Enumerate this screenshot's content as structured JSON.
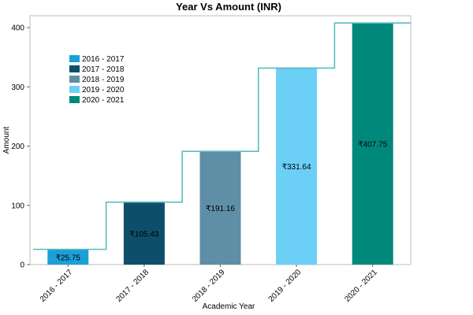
{
  "chart_data": {
    "type": "bar",
    "title": "Year Vs Amount (INR)",
    "xlabel": "Academic Year",
    "ylabel": "Amount",
    "ylim": [
      0,
      420
    ],
    "yticks": [
      0,
      100,
      200,
      300,
      400
    ],
    "categories": [
      "2016 - 2017",
      "2017 - 2018",
      "2018 - 2019",
      "2019 - 2020",
      "2020 - 2021"
    ],
    "values": [
      25.75,
      105.43,
      191.16,
      331.64,
      407.75
    ],
    "data_labels": [
      "₹25.75",
      "₹105.43",
      "₹191.16",
      "₹331.64",
      "₹407.75"
    ],
    "colors": [
      "#1ba0d7",
      "#0d4f6b",
      "#5e8fa6",
      "#6ccff6",
      "#00897b"
    ],
    "step_line_color": "#5bbcbd",
    "legend": {
      "placement": "top-left",
      "entries": [
        "2016 - 2017",
        "2017 - 2018",
        "2018 - 2019",
        "2019 - 2020",
        "2020 - 2021"
      ]
    },
    "grid": false
  }
}
